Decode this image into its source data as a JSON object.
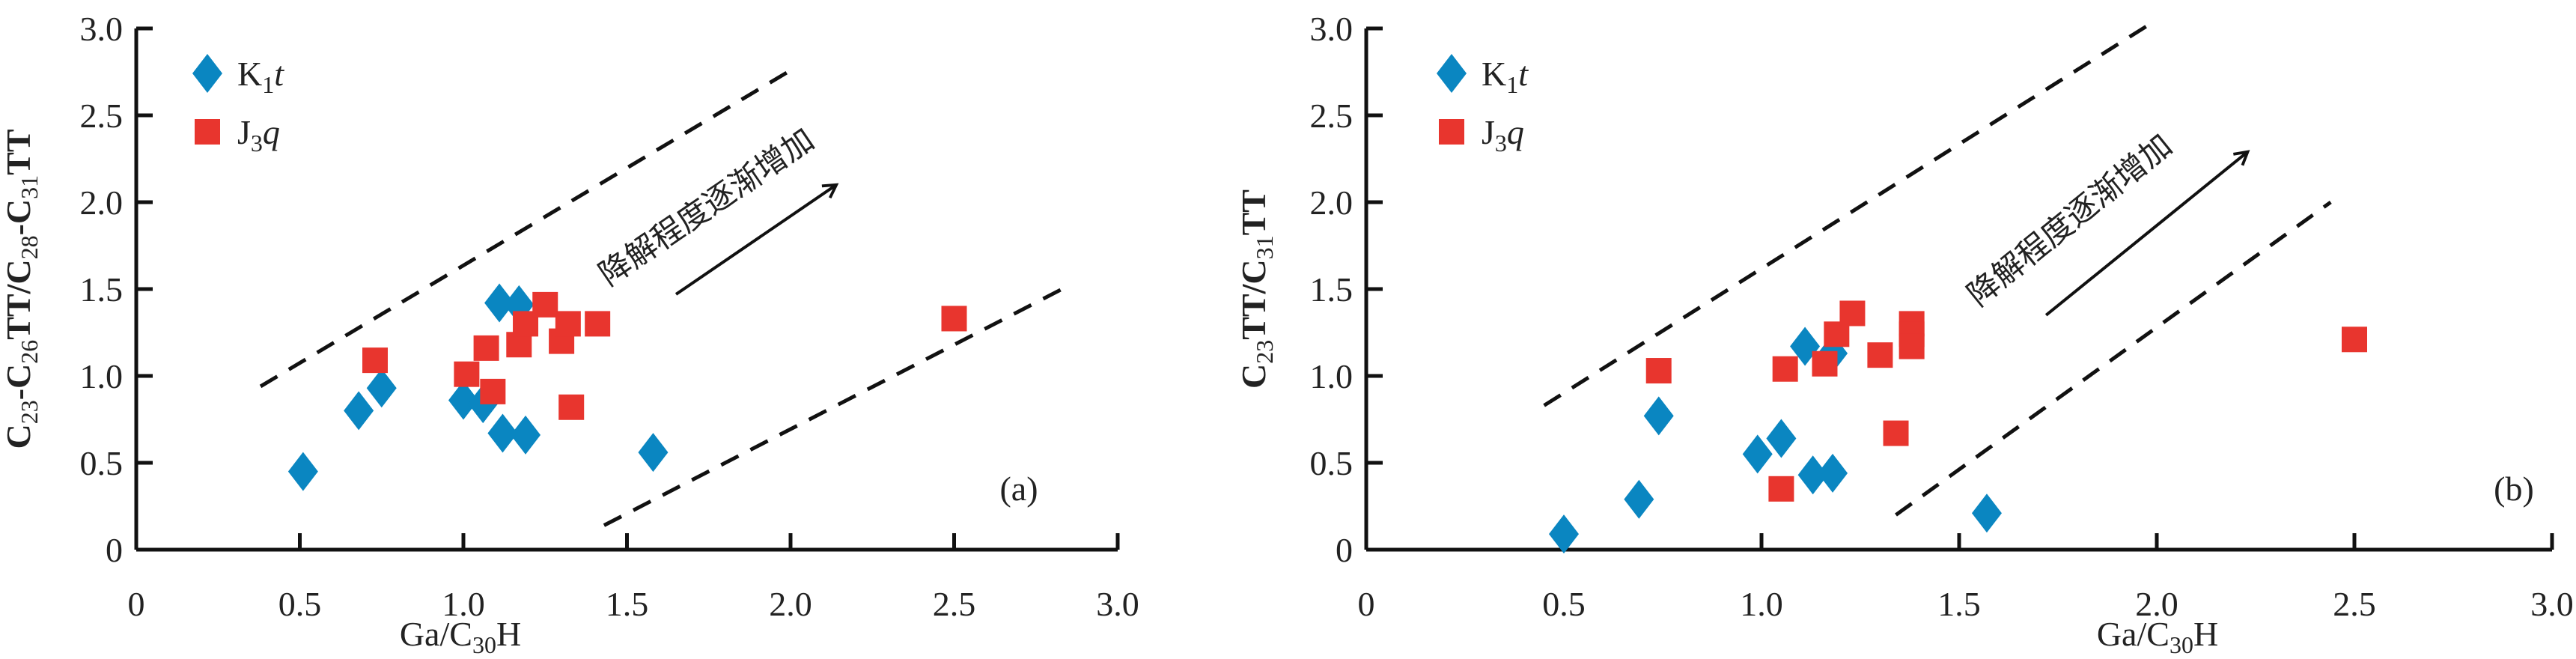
{
  "colors": {
    "K1t": "#0a86c1",
    "J3q": "#e8352e"
  },
  "chart_data": [
    {
      "type": "scatter",
      "panel_label": "(a)",
      "xlabel_parts": [
        {
          "text": "Ga/C"
        },
        {
          "text": "30",
          "sub": true
        },
        {
          "text": "H"
        }
      ],
      "ylabel_parts": [
        {
          "text": "C"
        },
        {
          "text": "23",
          "sub": true
        },
        {
          "text": "-C"
        },
        {
          "text": "26",
          "sub": true
        },
        {
          "text": "TT/C"
        },
        {
          "text": "28",
          "sub": true
        },
        {
          "text": "-C"
        },
        {
          "text": "31",
          "sub": true
        },
        {
          "text": "TT"
        }
      ],
      "xlim": [
        0,
        3.0
      ],
      "ylim": [
        0,
        3.0
      ],
      "xticks": [
        "0",
        "0.5",
        "1.0",
        "1.5",
        "2.0",
        "2.5",
        "3.0"
      ],
      "yticks": [
        "0",
        "0.5",
        "1.0",
        "1.5",
        "2.0",
        "2.5",
        "3.0"
      ],
      "legend_position": "top-left",
      "annotation": "降解程度逐渐增加",
      "series": [
        {
          "name_parts": [
            {
              "text": "K"
            },
            {
              "text": "1",
              "sub": true
            },
            {
              "text": "t",
              "italic": true
            }
          ],
          "marker": "diamond",
          "color_key": "K1t",
          "points": [
            [
              0.51,
              0.45
            ],
            [
              0.68,
              0.8
            ],
            [
              0.75,
              0.93
            ],
            [
              1.0,
              0.86
            ],
            [
              1.06,
              0.84
            ],
            [
              1.11,
              1.42
            ],
            [
              1.17,
              1.41
            ],
            [
              1.12,
              0.67
            ],
            [
              1.19,
              0.66
            ],
            [
              1.58,
              0.56
            ]
          ]
        },
        {
          "name_parts": [
            {
              "text": "J"
            },
            {
              "text": "3",
              "sub": true
            },
            {
              "text": "q",
              "italic": true
            }
          ],
          "marker": "square",
          "color_key": "J3q",
          "points": [
            [
              0.73,
              1.09
            ],
            [
              1.01,
              1.01
            ],
            [
              1.07,
              1.16
            ],
            [
              1.09,
              0.91
            ],
            [
              1.17,
              1.18
            ],
            [
              1.19,
              1.3
            ],
            [
              1.25,
              1.41
            ],
            [
              1.3,
              1.2
            ],
            [
              1.32,
              1.3
            ],
            [
              1.33,
              0.82
            ],
            [
              1.41,
              1.3
            ],
            [
              2.5,
              1.33
            ]
          ]
        }
      ],
      "guide_lines": [
        [
          [
            0.38,
            0.94
          ],
          [
            2.01,
            2.77
          ]
        ],
        [
          [
            1.43,
            0.14
          ],
          [
            2.83,
            1.5
          ]
        ]
      ],
      "arrow": [
        [
          1.65,
          1.47
        ],
        [
          2.14,
          2.1
        ]
      ]
    },
    {
      "type": "scatter",
      "panel_label": "(b)",
      "xlabel_parts": [
        {
          "text": "Ga/C"
        },
        {
          "text": "30",
          "sub": true
        },
        {
          "text": "H"
        }
      ],
      "ylabel_parts": [
        {
          "text": "C"
        },
        {
          "text": "23",
          "sub": true
        },
        {
          "text": "TT/C"
        },
        {
          "text": "31",
          "sub": true
        },
        {
          "text": "TT"
        }
      ],
      "xlim": [
        0,
        3.0
      ],
      "ylim": [
        0,
        3.0
      ],
      "xticks": [
        "0",
        "0.5",
        "1.0",
        "1.5",
        "2.0",
        "2.5",
        "3.0"
      ],
      "yticks": [
        "0",
        "0.5",
        "1.0",
        "1.5",
        "2.0",
        "2.5",
        "3.0"
      ],
      "legend_position": "top-left",
      "annotation": "降解程度逐渐增加",
      "series": [
        {
          "name_parts": [
            {
              "text": "K"
            },
            {
              "text": "1",
              "sub": true
            },
            {
              "text": "t",
              "italic": true
            }
          ],
          "marker": "diamond",
          "color_key": "K1t",
          "points": [
            [
              0.5,
              0.09
            ],
            [
              0.69,
              0.29
            ],
            [
              0.74,
              0.77
            ],
            [
              0.99,
              0.55
            ],
            [
              1.05,
              0.64
            ],
            [
              1.11,
              1.17
            ],
            [
              1.18,
              1.13
            ],
            [
              1.13,
              0.43
            ],
            [
              1.18,
              0.44
            ],
            [
              1.57,
              0.21
            ]
          ]
        },
        {
          "name_parts": [
            {
              "text": "J"
            },
            {
              "text": "3",
              "sub": true
            },
            {
              "text": "q",
              "italic": true
            }
          ],
          "marker": "square",
          "color_key": "J3q",
          "points": [
            [
              0.74,
              1.03
            ],
            [
              1.06,
              1.04
            ],
            [
              1.05,
              0.35
            ],
            [
              1.16,
              1.07
            ],
            [
              1.19,
              1.24
            ],
            [
              1.23,
              1.36
            ],
            [
              1.3,
              1.12
            ],
            [
              1.34,
              0.67
            ],
            [
              1.38,
              1.3
            ],
            [
              1.38,
              1.24
            ],
            [
              1.38,
              1.17
            ],
            [
              2.5,
              1.21
            ]
          ]
        }
      ],
      "guide_lines": [
        [
          [
            0.45,
            0.83
          ],
          [
            2.0,
            3.05
          ]
        ],
        [
          [
            1.34,
            0.2
          ],
          [
            2.44,
            2.0
          ]
        ]
      ],
      "arrow": [
        [
          1.72,
          1.35
        ],
        [
          2.23,
          2.29
        ]
      ]
    }
  ]
}
